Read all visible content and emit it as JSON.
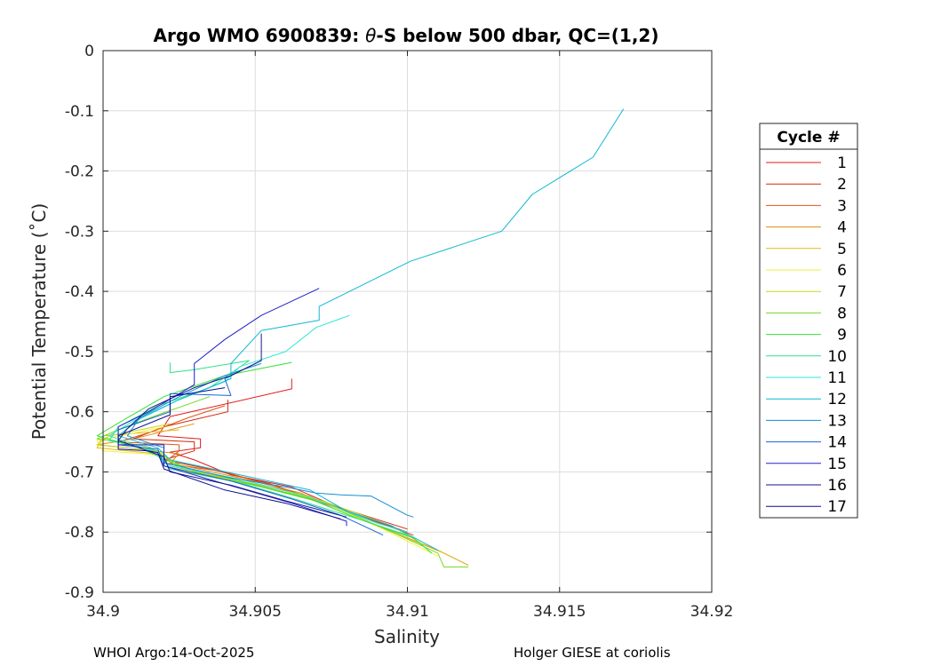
{
  "chart_data": {
    "type": "line",
    "title_prefix": "Argo WMO 6900839: ",
    "title_theta": "θ",
    "title_suffix": "-S below 500 dbar,  QC=(1,2)",
    "xlabel": "Salinity",
    "ylabel": "Potential Temperature (˚C)",
    "xlim": [
      34.9,
      34.92
    ],
    "ylim": [
      -0.9,
      0
    ],
    "xticks": [
      34.9,
      34.905,
      34.91,
      34.915,
      34.92
    ],
    "xtick_labels": [
      "34.9",
      "34.905",
      "34.91",
      "34.915",
      "34.92"
    ],
    "yticks": [
      0,
      -0.1,
      -0.2,
      -0.3,
      -0.4,
      -0.5,
      -0.6,
      -0.7,
      -0.8,
      -0.9
    ],
    "ytick_labels": [
      "0",
      "-0.1",
      "-0.2",
      "-0.3",
      "-0.4",
      "-0.5",
      "-0.6",
      "-0.7",
      "-0.8",
      "-0.9"
    ],
    "grid": true,
    "legend_title": "Cycle #",
    "legend_position": "right",
    "series": [
      {
        "name": "1",
        "color": "#e21d1d",
        "points": [
          [
            34.9062,
            -0.545
          ],
          [
            34.9062,
            -0.562
          ],
          [
            34.9022,
            -0.608
          ],
          [
            34.9018,
            -0.64
          ],
          [
            34.9032,
            -0.645
          ],
          [
            34.9032,
            -0.66
          ],
          [
            34.9022,
            -0.667
          ],
          [
            34.903,
            -0.68
          ],
          [
            34.9042,
            -0.705
          ],
          [
            34.9062,
            -0.725
          ],
          [
            34.908,
            -0.765
          ],
          [
            34.91,
            -0.8
          ]
        ]
      },
      {
        "name": "2",
        "color": "#d22a0a",
        "points": [
          [
            34.9041,
            -0.58
          ],
          [
            34.9041,
            -0.6
          ],
          [
            34.902,
            -0.625
          ],
          [
            34.901,
            -0.645
          ],
          [
            34.903,
            -0.65
          ],
          [
            34.903,
            -0.665
          ],
          [
            34.902,
            -0.68
          ],
          [
            34.9035,
            -0.695
          ],
          [
            34.9055,
            -0.72
          ],
          [
            34.9075,
            -0.755
          ],
          [
            34.91,
            -0.795
          ]
        ]
      },
      {
        "name": "3",
        "color": "#e0541a",
        "points": [
          [
            34.904,
            -0.59
          ],
          [
            34.9028,
            -0.61
          ],
          [
            34.9015,
            -0.635
          ],
          [
            34.9005,
            -0.65
          ],
          [
            34.9025,
            -0.655
          ],
          [
            34.9025,
            -0.665
          ],
          [
            34.902,
            -0.685
          ],
          [
            34.904,
            -0.7
          ],
          [
            34.906,
            -0.73
          ],
          [
            34.9085,
            -0.775
          ],
          [
            34.9102,
            -0.805
          ]
        ]
      },
      {
        "name": "4",
        "color": "#de8a13",
        "points": [
          [
            34.903,
            -0.62
          ],
          [
            34.901,
            -0.645
          ],
          [
            34.8998,
            -0.655
          ],
          [
            34.9012,
            -0.662
          ],
          [
            34.9025,
            -0.67
          ],
          [
            34.9022,
            -0.685
          ],
          [
            34.9045,
            -0.71
          ],
          [
            34.9065,
            -0.735
          ],
          [
            34.9088,
            -0.785
          ],
          [
            34.911,
            -0.83
          ],
          [
            34.912,
            -0.855
          ]
        ]
      },
      {
        "name": "5",
        "color": "#e6b71d",
        "points": [
          [
            34.9025,
            -0.63
          ],
          [
            34.9,
            -0.64
          ],
          [
            34.8998,
            -0.66
          ],
          [
            34.9018,
            -0.67
          ],
          [
            34.9022,
            -0.69
          ],
          [
            34.9045,
            -0.715
          ],
          [
            34.9068,
            -0.74
          ],
          [
            34.909,
            -0.79
          ],
          [
            34.9112,
            -0.835
          ],
          [
            34.912,
            -0.855
          ]
        ]
      },
      {
        "name": "6",
        "color": "#f2f230",
        "points": [
          [
            34.902,
            -0.625
          ],
          [
            34.8998,
            -0.648
          ],
          [
            34.9,
            -0.665
          ],
          [
            34.902,
            -0.672
          ],
          [
            34.9025,
            -0.695
          ],
          [
            34.9048,
            -0.72
          ],
          [
            34.907,
            -0.745
          ],
          [
            34.9092,
            -0.795
          ],
          [
            34.911,
            -0.84
          ]
        ]
      },
      {
        "name": "7",
        "color": "#c5d91e",
        "points": [
          [
            34.9022,
            -0.62
          ],
          [
            34.9002,
            -0.64
          ],
          [
            34.8998,
            -0.655
          ],
          [
            34.9018,
            -0.665
          ],
          [
            34.9028,
            -0.7
          ],
          [
            34.905,
            -0.722
          ],
          [
            34.9072,
            -0.748
          ],
          [
            34.9095,
            -0.79
          ],
          [
            34.9105,
            -0.82
          ]
        ]
      },
      {
        "name": "8",
        "color": "#78d72a",
        "points": [
          [
            34.9035,
            -0.575
          ],
          [
            34.9018,
            -0.605
          ],
          [
            34.9005,
            -0.63
          ],
          [
            34.8998,
            -0.645
          ],
          [
            34.9015,
            -0.658
          ],
          [
            34.9022,
            -0.68
          ],
          [
            34.903,
            -0.7
          ],
          [
            34.9052,
            -0.725
          ],
          [
            34.9075,
            -0.755
          ],
          [
            34.9095,
            -0.8
          ],
          [
            34.911,
            -0.835
          ],
          [
            34.9112,
            -0.858
          ],
          [
            34.912,
            -0.858
          ]
        ]
      },
      {
        "name": "9",
        "color": "#33e033",
        "points": [
          [
            34.9062,
            -0.518
          ],
          [
            34.904,
            -0.54
          ],
          [
            34.902,
            -0.575
          ],
          [
            34.9008,
            -0.61
          ],
          [
            34.8998,
            -0.64
          ],
          [
            34.9012,
            -0.66
          ],
          [
            34.9025,
            -0.69
          ],
          [
            34.9045,
            -0.715
          ],
          [
            34.9068,
            -0.745
          ],
          [
            34.9085,
            -0.78
          ],
          [
            34.9102,
            -0.81
          ],
          [
            34.9108,
            -0.835
          ]
        ]
      },
      {
        "name": "10",
        "color": "#2ee08a",
        "points": [
          [
            34.9022,
            -0.518
          ],
          [
            34.9022,
            -0.535
          ],
          [
            34.903,
            -0.53
          ],
          [
            34.9048,
            -0.515
          ],
          [
            34.9035,
            -0.56
          ],
          [
            34.9018,
            -0.59
          ],
          [
            34.9005,
            -0.625
          ],
          [
            34.9002,
            -0.648
          ],
          [
            34.9018,
            -0.665
          ],
          [
            34.9022,
            -0.695
          ],
          [
            34.9045,
            -0.718
          ],
          [
            34.9065,
            -0.748
          ],
          [
            34.9085,
            -0.78
          ],
          [
            34.91,
            -0.805
          ]
        ]
      },
      {
        "name": "11",
        "color": "#2ee6d7",
        "points": [
          [
            34.9081,
            -0.44
          ],
          [
            34.907,
            -0.46
          ],
          [
            34.906,
            -0.5
          ],
          [
            34.9045,
            -0.525
          ],
          [
            34.904,
            -0.55
          ],
          [
            34.9025,
            -0.58
          ],
          [
            34.901,
            -0.615
          ],
          [
            34.9002,
            -0.64
          ],
          [
            34.9016,
            -0.665
          ],
          [
            34.9022,
            -0.69
          ],
          [
            34.9045,
            -0.712
          ],
          [
            34.9068,
            -0.742
          ],
          [
            34.909,
            -0.785
          ],
          [
            34.91,
            -0.8
          ]
        ]
      },
      {
        "name": "12",
        "color": "#11b7d3",
        "points": [
          [
            34.9171,
            -0.097
          ],
          [
            34.9161,
            -0.177
          ],
          [
            34.9141,
            -0.239
          ],
          [
            34.9131,
            -0.3
          ],
          [
            34.9101,
            -0.35
          ],
          [
            34.9071,
            -0.425
          ],
          [
            34.9071,
            -0.448
          ],
          [
            34.9052,
            -0.465
          ],
          [
            34.9042,
            -0.52
          ],
          [
            34.9042,
            -0.545
          ],
          [
            34.9025,
            -0.58
          ],
          [
            34.9012,
            -0.612
          ],
          [
            34.9005,
            -0.64
          ],
          [
            34.9018,
            -0.66
          ],
          [
            34.9022,
            -0.68
          ],
          [
            34.9045,
            -0.705
          ],
          [
            34.9068,
            -0.73
          ],
          [
            34.908,
            -0.765
          ],
          [
            34.9095,
            -0.79
          ],
          [
            34.911,
            -0.83
          ]
        ]
      },
      {
        "name": "13",
        "color": "#138ed1",
        "points": [
          [
            34.9052,
            -0.52
          ],
          [
            34.904,
            -0.54
          ],
          [
            34.9025,
            -0.575
          ],
          [
            34.9012,
            -0.61
          ],
          [
            34.9008,
            -0.64
          ],
          [
            34.902,
            -0.66
          ],
          [
            34.902,
            -0.685
          ],
          [
            34.9042,
            -0.71
          ],
          [
            34.906,
            -0.725
          ],
          [
            34.907,
            -0.735
          ],
          [
            34.9078,
            -0.738
          ],
          [
            34.9088,
            -0.74
          ],
          [
            34.91,
            -0.772
          ],
          [
            34.9102,
            -0.775
          ]
        ]
      },
      {
        "name": "14",
        "color": "#1566d6",
        "points": [
          [
            34.9052,
            -0.515
          ],
          [
            34.904,
            -0.545
          ],
          [
            34.9042,
            -0.573
          ],
          [
            34.9022,
            -0.57
          ],
          [
            34.9022,
            -0.6
          ],
          [
            34.9005,
            -0.63
          ],
          [
            34.9005,
            -0.655
          ],
          [
            34.9018,
            -0.662
          ],
          [
            34.902,
            -0.69
          ],
          [
            34.9042,
            -0.715
          ],
          [
            34.9062,
            -0.745
          ],
          [
            34.9078,
            -0.772
          ],
          [
            34.9092,
            -0.805
          ]
        ]
      },
      {
        "name": "15",
        "color": "#1f20c9",
        "points": [
          [
            34.9071,
            -0.395
          ],
          [
            34.9052,
            -0.44
          ],
          [
            34.904,
            -0.48
          ],
          [
            34.903,
            -0.52
          ],
          [
            34.903,
            -0.555
          ],
          [
            34.9015,
            -0.6
          ],
          [
            34.9005,
            -0.625
          ],
          [
            34.9005,
            -0.655
          ],
          [
            34.902,
            -0.655
          ],
          [
            34.902,
            -0.69
          ],
          [
            34.904,
            -0.72
          ],
          [
            34.9062,
            -0.752
          ],
          [
            34.908,
            -0.782
          ],
          [
            34.908,
            -0.79
          ]
        ]
      },
      {
        "name": "16",
        "color": "#16168a",
        "points": [
          [
            34.9052,
            -0.47
          ],
          [
            34.9052,
            -0.515
          ],
          [
            34.9042,
            -0.54
          ],
          [
            34.903,
            -0.56
          ],
          [
            34.9015,
            -0.595
          ],
          [
            34.9008,
            -0.628
          ],
          [
            34.9005,
            -0.648
          ],
          [
            34.9012,
            -0.66
          ],
          [
            34.902,
            -0.675
          ],
          [
            34.9022,
            -0.7
          ],
          [
            34.9042,
            -0.722
          ],
          [
            34.906,
            -0.748
          ],
          [
            34.908,
            -0.775
          ]
        ]
      },
      {
        "name": "17",
        "color": "#0a0a95",
        "points": [
          [
            34.904,
            -0.56
          ],
          [
            34.9022,
            -0.575
          ],
          [
            34.9022,
            -0.605
          ],
          [
            34.9005,
            -0.64
          ],
          [
            34.9005,
            -0.662
          ],
          [
            34.9015,
            -0.665
          ],
          [
            34.9018,
            -0.668
          ],
          [
            34.902,
            -0.695
          ],
          [
            34.904,
            -0.73
          ],
          [
            34.906,
            -0.752
          ],
          [
            34.9078,
            -0.778
          ]
        ]
      }
    ]
  },
  "footer": {
    "left": "WHOI Argo:14-Oct-2025",
    "right": "Holger GIESE at coriolis"
  }
}
